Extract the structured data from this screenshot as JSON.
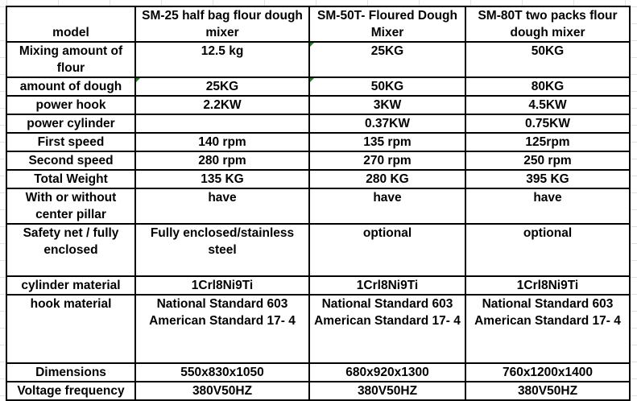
{
  "columns": [
    "model",
    "SM-25 half bag flour dough mixer",
    "SM-50T- Floured Dough Mixer",
    "SM-80T two packs flour dough mixer"
  ],
  "rows": [
    {
      "label": "Mixing amount of flour",
      "values": [
        "12.5 kg",
        "25KG",
        "50KG"
      ]
    },
    {
      "label": "amount of dough",
      "values": [
        "25KG",
        "50KG",
        "80KG"
      ]
    },
    {
      "label": "power hook",
      "values": [
        "2.2KW",
        "3KW",
        "4.5KW"
      ]
    },
    {
      "label": "power cylinder",
      "values": [
        "",
        "0.37KW",
        "0.75KW"
      ]
    },
    {
      "label": "First speed",
      "values": [
        "140 rpm",
        "135 rpm",
        "125rpm"
      ]
    },
    {
      "label": "Second speed",
      "values": [
        "280 rpm",
        "270 rpm",
        "250 rpm"
      ]
    },
    {
      "label": "Total Weight",
      "values": [
        "135 KG",
        "280 KG",
        "395 KG"
      ]
    },
    {
      "label": "With or without center pillar",
      "values": [
        "have",
        "have",
        "have"
      ]
    },
    {
      "label": "Safety net / fully enclosed",
      "values": [
        "Fully enclosed/stainless steel",
        "optional",
        "optional"
      ]
    },
    {
      "label": "cylinder material",
      "values": [
        "1Crl8Ni9Ti",
        "1Crl8Ni9Ti",
        "1Crl8Ni9Ti"
      ]
    },
    {
      "label": "hook material",
      "values": [
        "National Standard 603 American Standard 17- 4",
        "National Standard 603 American Standard 17- 4",
        "National Standard 603 American Standard 17- 4"
      ]
    },
    {
      "label": "Dimensions",
      "values": [
        "550x830x1050",
        "680x920x1300",
        "760x1200x1400"
      ]
    },
    {
      "label": "Voltage frequency",
      "values": [
        "380V50HZ",
        "380V50HZ",
        "380V50HZ"
      ]
    }
  ],
  "colors": {
    "border": "#000000",
    "error_marker": "#1a8a1a",
    "gridline": "#e2e2e2"
  }
}
